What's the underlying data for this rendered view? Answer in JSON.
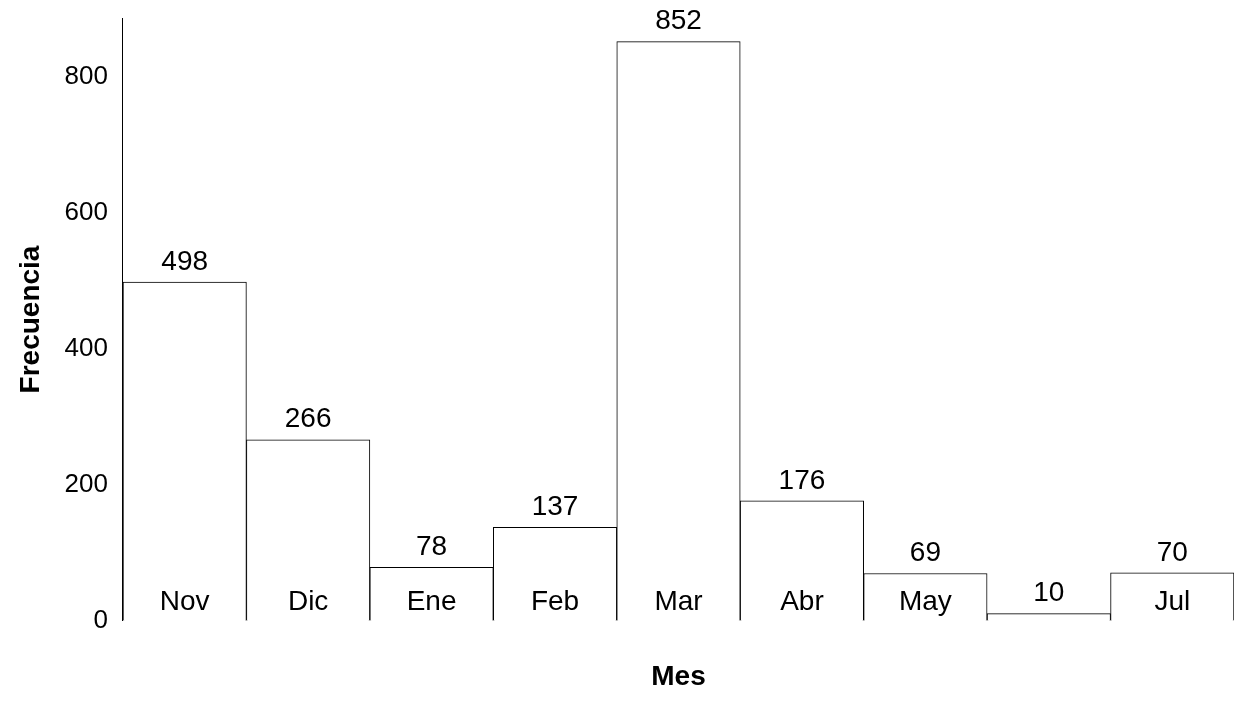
{
  "chart_data": {
    "type": "bar",
    "xlabel": "Mes",
    "ylabel": "Frecuencia",
    "categories": [
      "Nov",
      "Dic",
      "Ene",
      "Feb",
      "Mar",
      "Abr",
      "May",
      null,
      "Jul"
    ],
    "values": [
      498,
      266,
      78,
      137,
      852,
      176,
      69,
      10,
      70
    ],
    "color": "#ffffff",
    "ylim": [
      0,
      886
    ],
    "yticks": [
      0,
      200,
      400,
      600,
      800
    ],
    "data_labels": true,
    "grid": false,
    "legend": false
  }
}
